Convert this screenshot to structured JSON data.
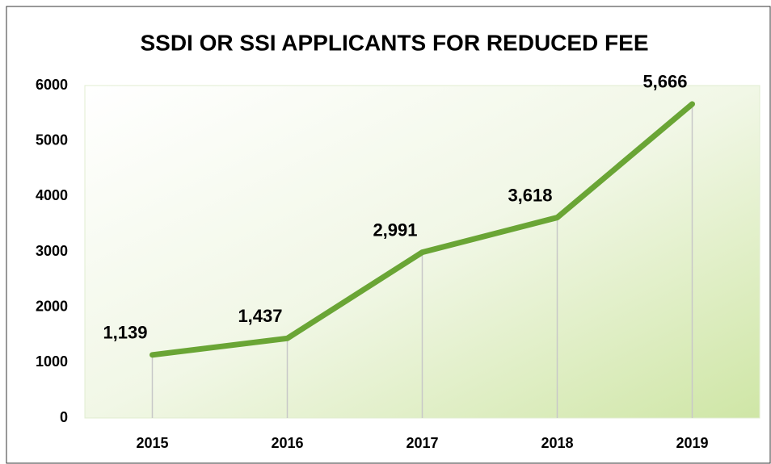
{
  "chart_data": {
    "type": "line",
    "title": "SSDI OR SSI APPLICANTS FOR REDUCED FEE",
    "categories": [
      "2015",
      "2016",
      "2017",
      "2018",
      "2019"
    ],
    "values": [
      1139,
      1437,
      2991,
      3618,
      5666
    ],
    "value_labels": [
      "1,139",
      "1,437",
      "2,991",
      "3,618",
      "5,666"
    ],
    "color": "#6aa535",
    "ylim": [
      0,
      6000
    ],
    "yticks": [
      0,
      1000,
      2000,
      3000,
      4000,
      5000,
      6000
    ],
    "grid": false
  }
}
